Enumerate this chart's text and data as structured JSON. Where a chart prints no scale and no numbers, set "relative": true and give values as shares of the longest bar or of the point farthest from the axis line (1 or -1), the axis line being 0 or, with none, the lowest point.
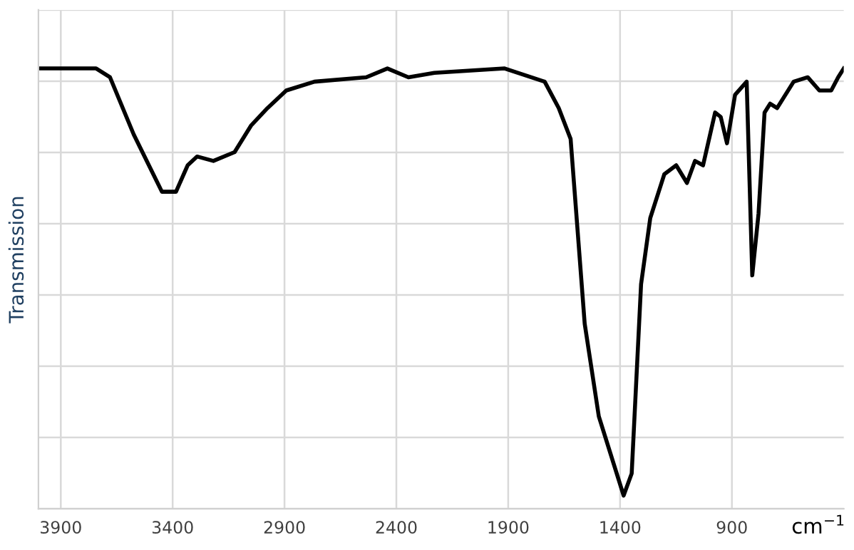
{
  "chart_data": {
    "type": "line",
    "relative": true,
    "xlabel": "cm$^{−1}$",
    "ylabel": "Transmission",
    "xlim": [
      4000,
      400
    ],
    "xticks": [
      3900,
      3400,
      2900,
      2400,
      1900,
      1400,
      900
    ],
    "grid": true,
    "line_style": "solid",
    "series": [
      {
        "color": "#000000",
        "x": [
          4000,
          3742,
          3680,
          3574,
          3448,
          3385,
          3333,
          3291,
          3218,
          3123,
          3050,
          2976,
          2892,
          2766,
          2535,
          2440,
          2346,
          2230,
          1916,
          1737,
          1674,
          1621,
          1558,
          1495,
          1384,
          1348,
          1306,
          1265,
          1202,
          1149,
          1101,
          1065,
          1029,
          975,
          950,
          922,
          886,
          834,
          809,
          781,
          754,
          729,
          698,
          624,
          561,
          509,
          456,
          425,
          400
        ],
        "values": [
          1.0,
          1.0,
          0.98,
          0.85,
          0.72,
          0.72,
          0.78,
          0.8,
          0.79,
          0.81,
          0.87,
          0.91,
          0.95,
          0.97,
          0.98,
          1.0,
          0.98,
          0.99,
          1.0,
          0.97,
          0.91,
          0.84,
          0.42,
          0.21,
          0.03,
          0.08,
          0.51,
          0.66,
          0.76,
          0.78,
          0.74,
          0.79,
          0.78,
          0.9,
          0.89,
          0.83,
          0.94,
          0.97,
          0.53,
          0.67,
          0.9,
          0.92,
          0.91,
          0.97,
          0.98,
          0.95,
          0.95,
          0.98,
          1.0
        ]
      }
    ]
  }
}
